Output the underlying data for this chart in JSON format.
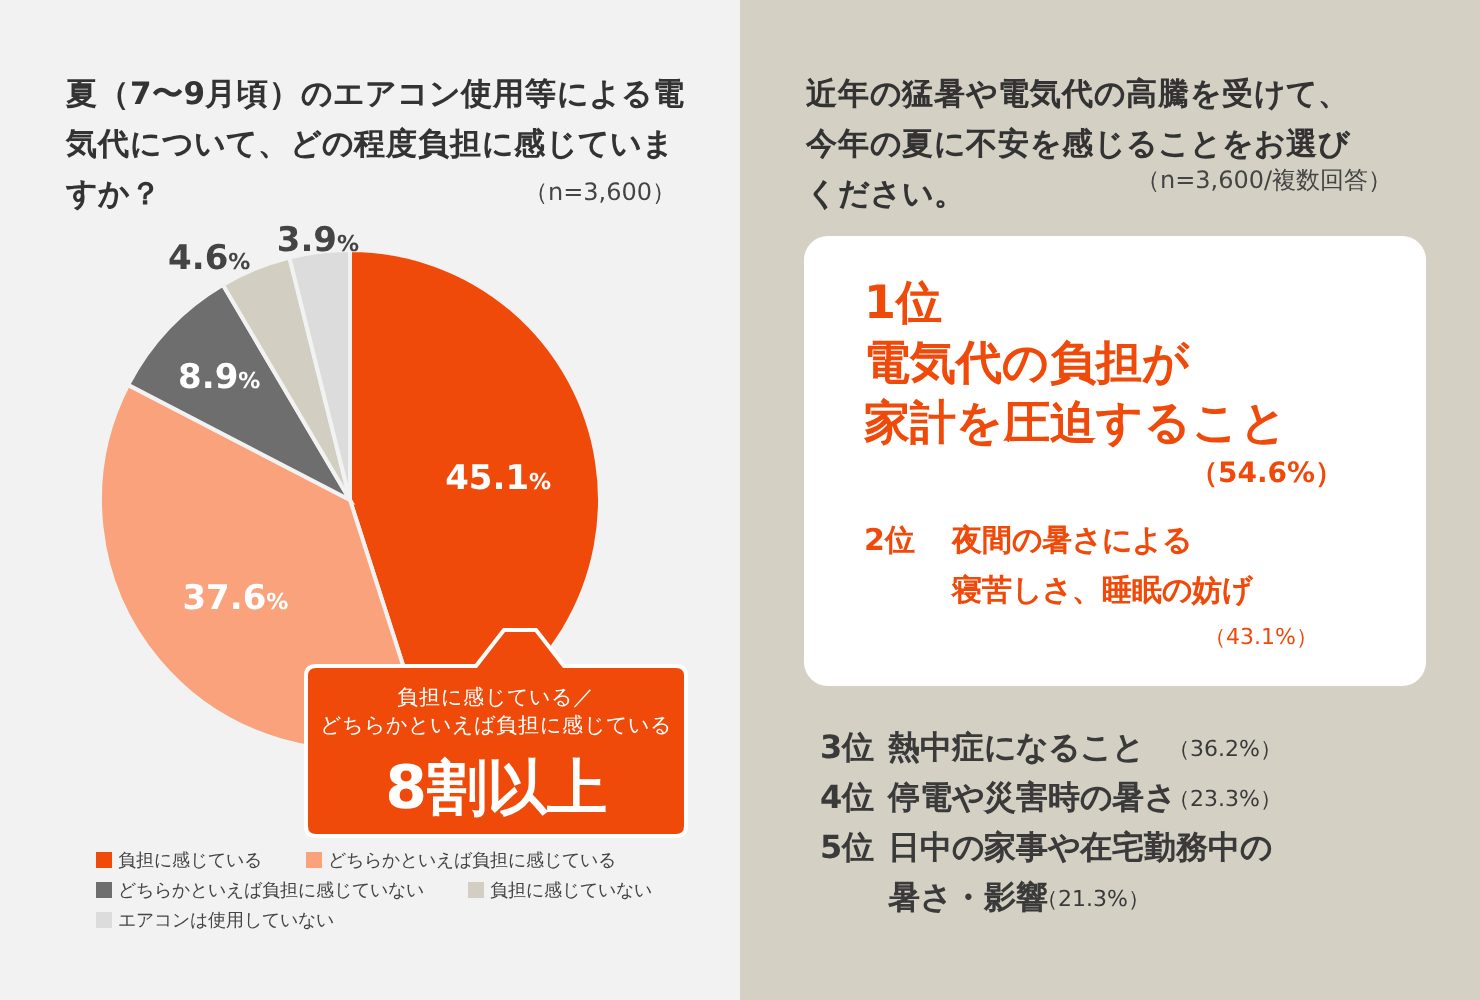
{
  "chart_data": [
    {
      "type": "pie",
      "title": "夏（7〜9月頃）のエアコン使用等による電気代について、どの程度負担に感じていますか？",
      "subtitle": "（n=3,600）",
      "categories": [
        "負担に感じている",
        "どちらかといえば負担に感じている",
        "どちらかといえば負担に感じていない",
        "負担に感じていない",
        "エアコンは使用していない"
      ],
      "values": [
        45.1,
        37.6,
        8.9,
        4.6,
        3.9
      ],
      "colors": [
        "#f04a0a",
        "#f9a27c",
        "#6e6e6e",
        "#d2cec2",
        "#dcdcdc"
      ],
      "value_labels": [
        "45.1%",
        "37.6%",
        "8.9%",
        "4.6%",
        "3.9%"
      ],
      "legend": "bottom",
      "annotations": [
        "負担に感じている／どちらかといえば負担に感じている",
        "8割以上"
      ]
    },
    {
      "type": "other",
      "title": "近年の猛暑や電気代の高騰を受けて、今年の夏に不安を感じることをお選びください。",
      "subtitle": "（n=3,600/複数回答）",
      "annotations": [
        "1位",
        "電気代の負担が",
        "家計を圧迫すること",
        "（54.6%）",
        "2位",
        "夜間の暑さによる",
        "寝苦しさ、睡眠の妨げ",
        "（43.1%）",
        "3位",
        "熱中症になること",
        "（36.2%）",
        "4位",
        "停電や災害時の暑さ",
        "（23.3%）",
        "5位",
        "日中の家事や在宅勤務中の",
        "暑さ・影響",
        "（21.3%）"
      ]
    }
  ]
}
